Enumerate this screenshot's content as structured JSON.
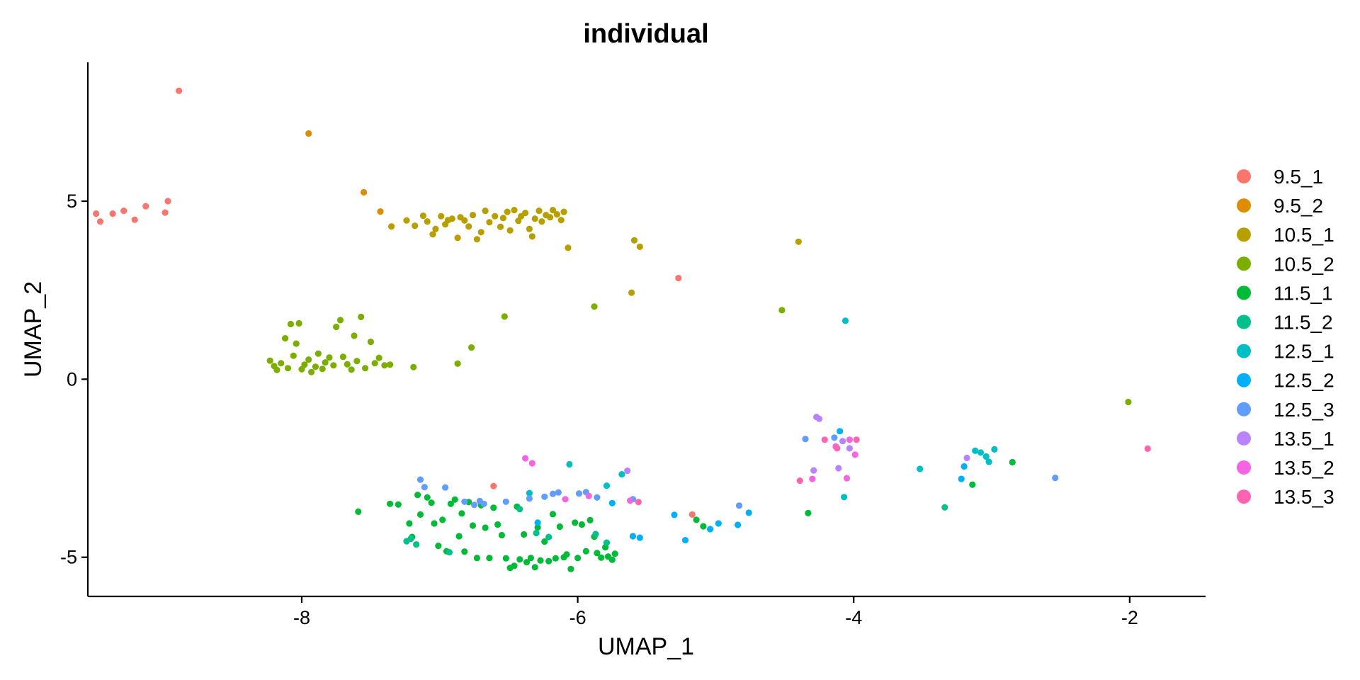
{
  "chart_data": {
    "type": "scatter",
    "title": "individual",
    "xlabel": "UMAP_1",
    "ylabel": "UMAP_2",
    "xlim": [
      -9.55,
      -1.45
    ],
    "ylim": [
      -6.1,
      8.9
    ],
    "xticks": [
      -8,
      -6,
      -4,
      -2
    ],
    "yticks": [
      -5,
      0,
      5
    ],
    "xtick_labels": [
      "-8",
      "-6",
      "-4",
      "-2"
    ],
    "ytick_labels": [
      "-5",
      "0",
      "5"
    ],
    "grid": false,
    "legend_position": "right",
    "series": [
      {
        "name": "9.5_1",
        "color": "#F8766D",
        "points": [
          [
            -8.89,
            8.1
          ],
          [
            -9.49,
            4.65
          ],
          [
            -9.46,
            4.43
          ],
          [
            -9.37,
            4.65
          ],
          [
            -9.29,
            4.73
          ],
          [
            -9.21,
            4.48
          ],
          [
            -9.13,
            4.86
          ],
          [
            -8.99,
            4.68
          ],
          [
            -8.97,
            5.0
          ],
          [
            -5.27,
            2.84
          ],
          [
            -6.61,
            -3.0
          ],
          [
            -5.17,
            -3.8
          ]
        ]
      },
      {
        "name": "9.5_2",
        "color": "#DE8C00",
        "points": [
          [
            -7.95,
            6.9
          ],
          [
            -7.55,
            5.25
          ],
          [
            -7.43,
            4.71
          ]
        ]
      },
      {
        "name": "10.5_1",
        "color": "#B79F00",
        "points": [
          [
            -7.35,
            4.29
          ],
          [
            -7.24,
            4.46
          ],
          [
            -7.18,
            4.31
          ],
          [
            -7.12,
            4.59
          ],
          [
            -7.09,
            4.43
          ],
          [
            -7.05,
            4.07
          ],
          [
            -7.03,
            4.22
          ],
          [
            -6.99,
            4.58
          ],
          [
            -6.96,
            4.35
          ],
          [
            -6.94,
            4.47
          ],
          [
            -6.91,
            4.51
          ],
          [
            -6.87,
            3.97
          ],
          [
            -6.85,
            4.55
          ],
          [
            -6.82,
            4.46
          ],
          [
            -6.79,
            4.29
          ],
          [
            -6.76,
            4.61
          ],
          [
            -6.73,
            3.93
          ],
          [
            -6.7,
            4.13
          ],
          [
            -6.67,
            4.73
          ],
          [
            -6.64,
            4.41
          ],
          [
            -6.6,
            4.58
          ],
          [
            -6.56,
            4.28
          ],
          [
            -6.54,
            4.53
          ],
          [
            -6.51,
            4.7
          ],
          [
            -6.49,
            4.18
          ],
          [
            -6.46,
            4.75
          ],
          [
            -6.43,
            4.45
          ],
          [
            -6.41,
            4.58
          ],
          [
            -6.38,
            4.67
          ],
          [
            -6.35,
            4.22
          ],
          [
            -6.33,
            4.01
          ],
          [
            -6.31,
            4.51
          ],
          [
            -6.28,
            4.73
          ],
          [
            -6.26,
            4.43
          ],
          [
            -6.23,
            4.61
          ],
          [
            -6.2,
            4.55
          ],
          [
            -6.18,
            4.75
          ],
          [
            -6.15,
            4.63
          ],
          [
            -6.12,
            4.47
          ],
          [
            -6.1,
            4.7
          ],
          [
            -6.07,
            3.69
          ],
          [
            -5.59,
            3.9
          ],
          [
            -5.55,
            3.72
          ],
          [
            -5.61,
            2.43
          ],
          [
            -4.4,
            3.86
          ]
        ]
      },
      {
        "name": "10.5_2",
        "color": "#7CAE00",
        "points": [
          [
            -8.23,
            0.52
          ],
          [
            -8.2,
            0.37
          ],
          [
            -8.18,
            0.26
          ],
          [
            -8.15,
            0.45
          ],
          [
            -8.12,
            1.15
          ],
          [
            -8.1,
            0.31
          ],
          [
            -8.08,
            1.55
          ],
          [
            -8.06,
            0.66
          ],
          [
            -8.04,
            1.0
          ],
          [
            -8.02,
            1.57
          ],
          [
            -8.0,
            0.28
          ],
          [
            -7.98,
            0.41
          ],
          [
            -7.95,
            0.55
          ],
          [
            -7.93,
            0.2
          ],
          [
            -7.9,
            0.35
          ],
          [
            -7.88,
            0.72
          ],
          [
            -7.85,
            0.29
          ],
          [
            -7.83,
            0.47
          ],
          [
            -7.8,
            0.61
          ],
          [
            -7.77,
            0.39
          ],
          [
            -7.75,
            1.47
          ],
          [
            -7.72,
            1.66
          ],
          [
            -7.7,
            0.63
          ],
          [
            -7.67,
            0.42
          ],
          [
            -7.64,
            0.27
          ],
          [
            -7.62,
            1.22
          ],
          [
            -7.6,
            0.51
          ],
          [
            -7.57,
            1.75
          ],
          [
            -7.54,
            0.31
          ],
          [
            -7.5,
            1.05
          ],
          [
            -7.47,
            0.45
          ],
          [
            -7.44,
            0.6
          ],
          [
            -7.4,
            0.39
          ],
          [
            -7.36,
            0.41
          ],
          [
            -7.19,
            0.34
          ],
          [
            -6.87,
            0.44
          ],
          [
            -6.77,
            0.89
          ],
          [
            -6.53,
            1.76
          ],
          [
            -5.88,
            2.04
          ],
          [
            -4.52,
            1.94
          ],
          [
            -2.01,
            -0.64
          ]
        ]
      },
      {
        "name": "11.5_1",
        "color": "#00BA38",
        "points": [
          [
            -7.59,
            -3.72
          ],
          [
            -7.36,
            -3.5
          ],
          [
            -7.3,
            -3.52
          ],
          [
            -7.22,
            -4.05
          ],
          [
            -7.2,
            -4.43
          ],
          [
            -7.16,
            -3.25
          ],
          [
            -7.14,
            -3.8
          ],
          [
            -7.09,
            -3.32
          ],
          [
            -7.06,
            -3.47
          ],
          [
            -7.04,
            -4.05
          ],
          [
            -7.01,
            -4.68
          ],
          [
            -6.98,
            -3.95
          ],
          [
            -6.95,
            -4.83
          ],
          [
            -6.92,
            -3.5
          ],
          [
            -6.89,
            -3.38
          ],
          [
            -6.86,
            -4.41
          ],
          [
            -6.84,
            -3.77
          ],
          [
            -6.82,
            -4.84
          ],
          [
            -6.79,
            -3.45
          ],
          [
            -6.76,
            -4.11
          ],
          [
            -6.73,
            -5.02
          ],
          [
            -6.7,
            -3.54
          ],
          [
            -6.67,
            -4.17
          ],
          [
            -6.64,
            -5.02
          ],
          [
            -6.61,
            -3.61
          ],
          [
            -6.58,
            -4.08
          ],
          [
            -6.55,
            -4.38
          ],
          [
            -6.52,
            -5.03
          ],
          [
            -6.49,
            -5.3
          ],
          [
            -6.46,
            -5.24
          ],
          [
            -6.44,
            -3.58
          ],
          [
            -6.42,
            -5.06
          ],
          [
            -6.39,
            -4.36
          ],
          [
            -6.37,
            -5.14
          ],
          [
            -6.34,
            -5.02
          ],
          [
            -6.31,
            -5.28
          ],
          [
            -6.29,
            -4.16
          ],
          [
            -6.27,
            -5.09
          ],
          [
            -6.24,
            -4.56
          ],
          [
            -6.21,
            -5.11
          ],
          [
            -6.18,
            -3.79
          ],
          [
            -6.16,
            -5.03
          ],
          [
            -6.13,
            -4.14
          ],
          [
            -6.1,
            -5.0
          ],
          [
            -6.08,
            -4.92
          ],
          [
            -6.05,
            -5.33
          ],
          [
            -6.02,
            -4.03
          ],
          [
            -6.0,
            -5.02
          ],
          [
            -5.97,
            -4.08
          ],
          [
            -5.94,
            -4.83
          ],
          [
            -5.91,
            -3.96
          ],
          [
            -5.88,
            -4.42
          ],
          [
            -5.86,
            -4.88
          ],
          [
            -5.83,
            -5.01
          ],
          [
            -5.8,
            -4.72
          ],
          [
            -5.78,
            -4.98
          ],
          [
            -5.75,
            -5.07
          ],
          [
            -5.73,
            -4.9
          ],
          [
            -5.14,
            -3.95
          ],
          [
            -5.09,
            -4.13
          ],
          [
            -4.33,
            -3.76
          ],
          [
            -3.14,
            -2.96
          ],
          [
            -2.85,
            -2.33
          ]
        ]
      },
      {
        "name": "11.5_2",
        "color": "#00C08B",
        "points": [
          [
            -7.24,
            -4.55
          ],
          [
            -7.21,
            -4.48
          ],
          [
            -7.17,
            -4.64
          ],
          [
            -6.93,
            -4.86
          ],
          [
            -6.42,
            -3.65
          ],
          [
            -6.3,
            -4.32
          ],
          [
            -6.21,
            -4.43
          ],
          [
            -5.87,
            -4.35
          ],
          [
            -5.79,
            -4.59
          ],
          [
            -3.34,
            -3.6
          ]
        ]
      },
      {
        "name": "12.5_1",
        "color": "#00BFC4",
        "points": [
          [
            -6.35,
            -3.2
          ],
          [
            -6.06,
            -2.39
          ],
          [
            -5.79,
            -2.99
          ],
          [
            -5.68,
            -2.67
          ],
          [
            -4.06,
            1.64
          ],
          [
            -4.07,
            -3.31
          ],
          [
            -3.52,
            -2.52
          ],
          [
            -3.12,
            -2.01
          ],
          [
            -3.08,
            -2.06
          ],
          [
            -3.04,
            -2.17
          ],
          [
            -3.02,
            -2.32
          ],
          [
            -2.98,
            -1.97
          ]
        ]
      },
      {
        "name": "12.5_2",
        "color": "#00B0F6",
        "points": [
          [
            -6.29,
            -4.03
          ],
          [
            -5.75,
            -3.48
          ],
          [
            -5.6,
            -4.41
          ],
          [
            -5.55,
            -4.45
          ],
          [
            -5.3,
            -3.81
          ],
          [
            -5.22,
            -4.52
          ],
          [
            -5.04,
            -4.21
          ],
          [
            -4.98,
            -4.05
          ],
          [
            -4.84,
            -4.09
          ],
          [
            -4.76,
            -3.75
          ],
          [
            -4.1,
            -1.46
          ],
          [
            -3.22,
            -2.8
          ],
          [
            -3.2,
            -2.45
          ]
        ]
      },
      {
        "name": "12.5_3",
        "color": "#619CFF",
        "points": [
          [
            -7.14,
            -2.82
          ],
          [
            -7.11,
            -3.03
          ],
          [
            -6.96,
            -3.04
          ],
          [
            -6.82,
            -3.44
          ],
          [
            -6.75,
            -3.53
          ],
          [
            -6.71,
            -3.42
          ],
          [
            -6.68,
            -3.5
          ],
          [
            -6.52,
            -3.44
          ],
          [
            -6.35,
            -3.35
          ],
          [
            -6.24,
            -3.3
          ],
          [
            -6.18,
            -3.22
          ],
          [
            -6.14,
            -3.18
          ],
          [
            -5.99,
            -3.21
          ],
          [
            -5.94,
            -3.17
          ],
          [
            -5.86,
            -3.32
          ],
          [
            -5.6,
            -3.37
          ],
          [
            -4.83,
            -3.55
          ],
          [
            -4.35,
            -1.68
          ],
          [
            -4.14,
            -1.64
          ],
          [
            -2.54,
            -2.77
          ]
        ]
      },
      {
        "name": "13.5_1",
        "color": "#B983FF",
        "points": [
          [
            -4.27,
            -1.06
          ],
          [
            -4.25,
            -1.11
          ],
          [
            -4.29,
            -2.56
          ],
          [
            -4.11,
            -2.5
          ],
          [
            -4.08,
            -1.74
          ],
          [
            -4.03,
            -1.94
          ],
          [
            -3.18,
            -2.21
          ],
          [
            -5.64,
            -2.57
          ]
        ]
      },
      {
        "name": "13.5_2",
        "color": "#F564E3",
        "points": [
          [
            -6.38,
            -2.22
          ],
          [
            -6.33,
            -2.36
          ],
          [
            -6.09,
            -3.37
          ],
          [
            -5.92,
            -3.28
          ],
          [
            -5.62,
            -3.41
          ],
          [
            -4.3,
            -2.8
          ],
          [
            -4.13,
            -1.89
          ],
          [
            -4.05,
            -2.78
          ],
          [
            -3.99,
            -2.12
          ],
          [
            -4.03,
            -1.7
          ]
        ]
      },
      {
        "name": "13.5_3",
        "color": "#FF64B0",
        "points": [
          [
            -4.39,
            -2.85
          ],
          [
            -4.21,
            -1.7
          ],
          [
            -3.98,
            -1.7
          ],
          [
            -4.12,
            -1.94
          ],
          [
            -5.56,
            -3.45
          ],
          [
            -1.87,
            -1.95
          ]
        ]
      }
    ]
  }
}
